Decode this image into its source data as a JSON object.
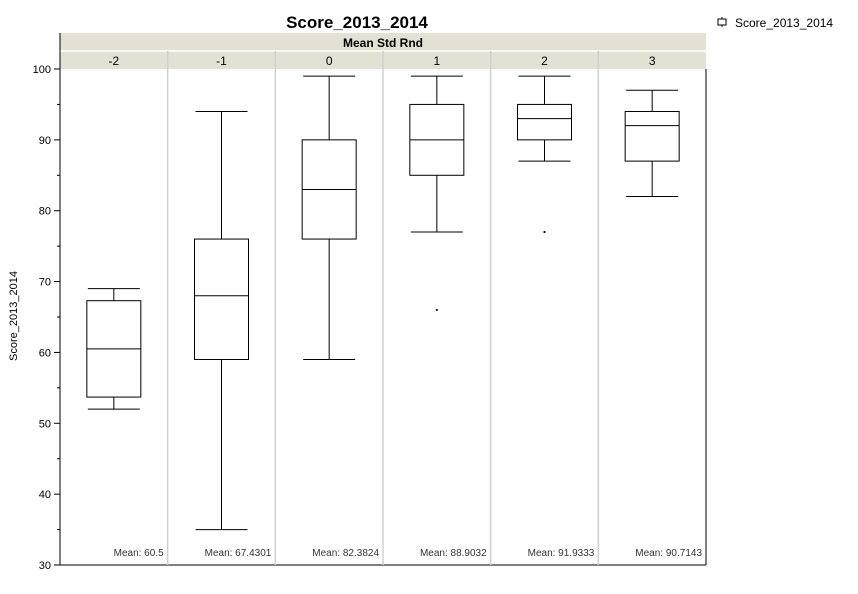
{
  "chart_data": {
    "type": "box",
    "title": "Score_2013_2014",
    "panel_header": "Mean Std Rnd",
    "ylabel": "Score_2013_2014",
    "ylim": [
      30,
      100
    ],
    "y_ticks": [
      30,
      40,
      50,
      60,
      70,
      80,
      90,
      100
    ],
    "legend": {
      "position": "top-right",
      "label": "Score_2013_2014"
    },
    "mean_prefix": "Mean:",
    "groups": [
      {
        "category": "-2",
        "whisker_low": 52,
        "q1": 53.7,
        "median": 60.5,
        "q3": 67.3,
        "whisker_high": 69,
        "outliers": [],
        "mean_label": "60.5"
      },
      {
        "category": "-1",
        "whisker_low": 35,
        "q1": 59,
        "median": 68,
        "q3": 76,
        "whisker_high": 94,
        "outliers": [],
        "mean_label": "67.4301"
      },
      {
        "category": "0",
        "whisker_low": 59,
        "q1": 76,
        "median": 83,
        "q3": 90,
        "whisker_high": 99,
        "outliers": [],
        "mean_label": "82.3824"
      },
      {
        "category": "1",
        "whisker_low": 77,
        "q1": 85,
        "median": 90,
        "q3": 95,
        "whisker_high": 99,
        "outliers": [
          66
        ],
        "mean_label": "88.9032"
      },
      {
        "category": "2",
        "whisker_low": 87,
        "q1": 90,
        "median": 93,
        "q3": 95,
        "whisker_high": 99,
        "outliers": [
          77
        ],
        "mean_label": "91.9333"
      },
      {
        "category": "3",
        "whisker_low": 82,
        "q1": 87,
        "median": 92,
        "q3": 94,
        "whisker_high": 97,
        "outliers": [],
        "mean_label": "90.7143"
      }
    ],
    "colors": {
      "box_stroke": "#000000",
      "header_fill": "#e2e1d4",
      "panel_divider": "#d0d0d0",
      "background": "#ffffff"
    }
  }
}
